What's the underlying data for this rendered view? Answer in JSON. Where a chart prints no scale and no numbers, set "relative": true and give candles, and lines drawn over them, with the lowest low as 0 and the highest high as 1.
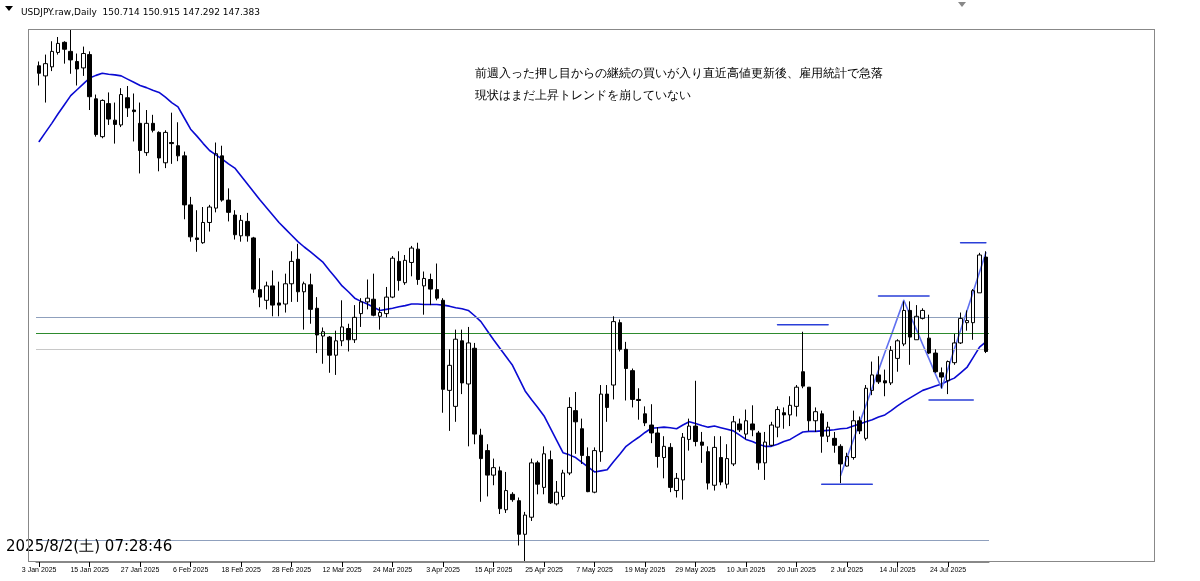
{
  "chart_data": {
    "type": "candlestick",
    "title": "USDJPY.raw,Daily  150.714 150.915 147.292 147.383",
    "relative": true,
    "marker": "none",
    "annotations": [
      "前週入った押し目からの継続の買いが入り直近高値更新後、雇用統計で急落",
      "現状はまだ上昇トレンドを崩していない",
      "2025/8/2(土) 07:28:46"
    ],
    "categories": [
      "3 Jan 2025",
      null,
      null,
      null,
      null,
      null,
      null,
      null,
      "15 Jan 2025",
      null,
      null,
      null,
      null,
      null,
      null,
      null,
      "27 Jan 2025",
      null,
      null,
      null,
      null,
      null,
      null,
      null,
      "6 Feb 2025",
      null,
      null,
      null,
      null,
      null,
      null,
      null,
      "18 Feb 2025",
      null,
      null,
      null,
      null,
      null,
      null,
      null,
      "28 Feb 2025",
      null,
      null,
      null,
      null,
      null,
      null,
      null,
      "12 Mar 2025",
      null,
      null,
      null,
      null,
      null,
      null,
      null,
      "24 Mar 2025",
      null,
      null,
      null,
      null,
      null,
      null,
      null,
      "3 Apr 2025",
      null,
      null,
      null,
      null,
      null,
      null,
      null,
      "15 Apr 2025",
      null,
      null,
      null,
      null,
      null,
      null,
      null,
      "25 Apr 2025",
      null,
      null,
      null,
      null,
      null,
      null,
      null,
      "7 May 2025",
      null,
      null,
      null,
      null,
      null,
      null,
      null,
      "19 May 2025",
      null,
      null,
      null,
      null,
      null,
      null,
      null,
      "29 May 2025",
      null,
      null,
      null,
      null,
      null,
      null,
      null,
      "10 Jun 2025",
      null,
      null,
      null,
      null,
      null,
      null,
      null,
      "20 Jun 2025",
      null,
      null,
      null,
      null,
      null,
      null,
      null,
      "2 Jul 2025",
      null,
      null,
      null,
      null,
      null,
      null,
      null,
      "14 Jul 2025",
      null,
      null,
      null,
      null,
      null,
      null,
      null,
      "24 Jul 2025",
      null,
      null,
      null,
      null,
      null,
      null
    ],
    "ohlc": [
      [
        0.931,
        0.939,
        0.894,
        0.917
      ],
      [
        0.912,
        0.952,
        0.862,
        0.935
      ],
      [
        0.929,
        0.977,
        0.921,
        0.958
      ],
      [
        0.956,
        0.985,
        0.952,
        0.973
      ],
      [
        0.975,
        0.977,
        0.935,
        0.962
      ],
      [
        0.958,
        1,
        0.916,
        0.942
      ],
      [
        0.939,
        0.954,
        0.894,
        0.925
      ],
      [
        0.927,
        0.967,
        0.912,
        0.954
      ],
      [
        0.952,
        0.958,
        0.848,
        0.873
      ],
      [
        0.869,
        0.877,
        0.798,
        0.802
      ],
      [
        0.798,
        0.868,
        0.795,
        0.866
      ],
      [
        0.86,
        0.881,
        0.82,
        0.831
      ],
      [
        0.829,
        0.862,
        0.785,
        0.821
      ],
      [
        0.82,
        0.889,
        0.816,
        0.877
      ],
      [
        0.871,
        0.893,
        0.835,
        0.852
      ],
      [
        0.848,
        0.879,
        0.789,
        0.845
      ],
      [
        0.823,
        0.862,
        0.729,
        0.772
      ],
      [
        0.768,
        0.848,
        0.762,
        0.823
      ],
      [
        0.823,
        0.839,
        0.806,
        0.81
      ],
      [
        0.806,
        0.808,
        0.733,
        0.758
      ],
      [
        0.749,
        0.81,
        0.739,
        0.806
      ],
      [
        0.787,
        0.843,
        0.747,
        0.785
      ],
      [
        0.781,
        0.825,
        0.752,
        0.762
      ],
      [
        0.762,
        0.77,
        0.643,
        0.67
      ],
      [
        0.67,
        0.685,
        0.601,
        0.61
      ],
      [
        0.608,
        0.66,
        0.582,
        0.605
      ],
      [
        0.599,
        0.666,
        0.597,
        0.637
      ],
      [
        0.637,
        0.67,
        0.62,
        0.666
      ],
      [
        0.664,
        0.787,
        0.656,
        0.766
      ],
      [
        0.762,
        0.781,
        0.676,
        0.679
      ],
      [
        0.679,
        0.701,
        0.639,
        0.656
      ],
      [
        0.651,
        0.66,
        0.605,
        0.614
      ],
      [
        0.612,
        0.651,
        0.601,
        0.641
      ],
      [
        0.639,
        0.655,
        0.601,
        0.612
      ],
      [
        0.608,
        0.61,
        0.505,
        0.512
      ],
      [
        0.511,
        0.57,
        0.478,
        0.497
      ],
      [
        0.491,
        0.526,
        0.474,
        0.518
      ],
      [
        0.518,
        0.547,
        0.461,
        0.482
      ],
      [
        0.486,
        0.526,
        0.461,
        0.482
      ],
      [
        0.484,
        0.541,
        0.468,
        0.522
      ],
      [
        0.522,
        0.583,
        0.488,
        0.564
      ],
      [
        0.568,
        0.597,
        0.488,
        0.507
      ],
      [
        0.507,
        0.526,
        0.436,
        0.522
      ],
      [
        0.52,
        0.541,
        0.447,
        0.474
      ],
      [
        0.476,
        0.497,
        0.392,
        0.426
      ],
      [
        0.424,
        0.44,
        0.372,
        0.432
      ],
      [
        0.422,
        0.424,
        0.355,
        0.388
      ],
      [
        0.388,
        0.434,
        0.351,
        0.415
      ],
      [
        0.415,
        0.491,
        0.405,
        0.441
      ],
      [
        0.438,
        0.447,
        0.395,
        0.417
      ],
      [
        0.417,
        0.482,
        0.411,
        0.459
      ],
      [
        0.466,
        0.495,
        0.441,
        0.488
      ],
      [
        0.488,
        0.53,
        0.474,
        0.495
      ],
      [
        0.493,
        0.541,
        0.461,
        0.463
      ],
      [
        0.461,
        0.478,
        0.436,
        0.468
      ],
      [
        0.466,
        0.516,
        0.459,
        0.497
      ],
      [
        0.497,
        0.574,
        0.495,
        0.57
      ],
      [
        0.564,
        0.583,
        0.509,
        0.528
      ],
      [
        0.524,
        0.576,
        0.52,
        0.566
      ],
      [
        0.562,
        0.593,
        0.536,
        0.589
      ],
      [
        0.587,
        0.599,
        0.52,
        0.53
      ],
      [
        0.518,
        0.545,
        0.464,
        0.532
      ],
      [
        0.53,
        0.541,
        0.482,
        0.512
      ],
      [
        0.511,
        0.56,
        0.491,
        0.495
      ],
      [
        0.491,
        0.495,
        0.28,
        0.324
      ],
      [
        0.322,
        0.399,
        0.246,
        0.369
      ],
      [
        0.292,
        0.436,
        0.263,
        0.418
      ],
      [
        0.415,
        0.436,
        0.315,
        0.336
      ],
      [
        0.334,
        0.441,
        0.217,
        0.411
      ],
      [
        0.401,
        0.411,
        0.221,
        0.24
      ],
      [
        0.238,
        0.25,
        0.113,
        0.194
      ],
      [
        0.209,
        0.221,
        0.123,
        0.163
      ],
      [
        0.163,
        0.194,
        0.144,
        0.177
      ],
      [
        0.171,
        0.179,
        0.09,
        0.1
      ],
      [
        0.098,
        0.169,
        0.092,
        0.134
      ],
      [
        0.127,
        0.131,
        0.113,
        0.117
      ],
      [
        0.115,
        0.121,
        0.031,
        0.052
      ],
      [
        0.052,
        0.094,
        0,
        0.088
      ],
      [
        0.084,
        0.194,
        0.077,
        0.186
      ],
      [
        0.186,
        0.19,
        0.127,
        0.146
      ],
      [
        0.14,
        0.217,
        0.127,
        0.203
      ],
      [
        0.192,
        0.209,
        0.109,
        0.111
      ],
      [
        0.109,
        0.152,
        0.106,
        0.131
      ],
      [
        0.123,
        0.173,
        0.117,
        0.167
      ],
      [
        0.167,
        0.309,
        0.163,
        0.29
      ],
      [
        0.284,
        0.319,
        0.203,
        0.263
      ],
      [
        0.25,
        0.269,
        0.184,
        0.2
      ],
      [
        0.198,
        0.215,
        0.131,
        0.132
      ],
      [
        0.131,
        0.215,
        0.129,
        0.209
      ],
      [
        0.207,
        0.332,
        0.188,
        0.315
      ],
      [
        0.315,
        0.332,
        0.263,
        0.29
      ],
      [
        0.332,
        0.461,
        0.305,
        0.451
      ],
      [
        0.449,
        0.455,
        0.395,
        0.399
      ],
      [
        0.399,
        0.413,
        0.303,
        0.363
      ],
      [
        0.359,
        0.363,
        0.29,
        0.305
      ],
      [
        0.305,
        0.326,
        0.267,
        0.303
      ],
      [
        0.278,
        0.292,
        0.255,
        0.261
      ],
      [
        0.257,
        0.296,
        0.223,
        0.242
      ],
      [
        0.242,
        0.253,
        0.177,
        0.198
      ],
      [
        0.196,
        0.236,
        0.157,
        0.217
      ],
      [
        0.215,
        0.223,
        0.131,
        0.14
      ],
      [
        0.134,
        0.167,
        0.121,
        0.157
      ],
      [
        0.154,
        0.242,
        0.117,
        0.234
      ],
      [
        0.23,
        0.269,
        0.209,
        0.255
      ],
      [
        0.255,
        0.34,
        0.217,
        0.226
      ],
      [
        0.225,
        0.244,
        0.186,
        0.219
      ],
      [
        0.207,
        0.217,
        0.136,
        0.148
      ],
      [
        0.144,
        0.236,
        0.134,
        0.215
      ],
      [
        0.196,
        0.236,
        0.144,
        0.15
      ],
      [
        0.146,
        0.221,
        0.138,
        0.194
      ],
      [
        0.184,
        0.274,
        0.18,
        0.263
      ],
      [
        0.259,
        0.269,
        0.244,
        0.248
      ],
      [
        0.24,
        0.286,
        0.23,
        0.265
      ],
      [
        0.259,
        0.294,
        0.236,
        0.248
      ],
      [
        0.242,
        0.246,
        0.173,
        0.186
      ],
      [
        0.186,
        0.244,
        0.154,
        0.225
      ],
      [
        0.219,
        0.263,
        0.217,
        0.257
      ],
      [
        0.253,
        0.292,
        0.234,
        0.286
      ],
      [
        0.28,
        0.29,
        0.25,
        0.276
      ],
      [
        0.276,
        0.311,
        0.255,
        0.294
      ],
      [
        0.292,
        0.332,
        0.273,
        0.328
      ],
      [
        0.357,
        0.432,
        0.326,
        0.33
      ],
      [
        0.328,
        0.328,
        0.246,
        0.265
      ],
      [
        0.265,
        0.29,
        0.244,
        0.282
      ],
      [
        0.278,
        0.284,
        0.205,
        0.236
      ],
      [
        0.236,
        0.263,
        0.225,
        0.253
      ],
      [
        0.232,
        0.244,
        0.205,
        0.219
      ],
      [
        0.217,
        0.221,
        0.148,
        0.184
      ],
      [
        0.18,
        0.205,
        0.179,
        0.198
      ],
      [
        0.196,
        0.284,
        0.192,
        0.265
      ],
      [
        0.265,
        0.273,
        0.24,
        0.246
      ],
      [
        0.232,
        0.332,
        0.228,
        0.326
      ],
      [
        0.322,
        0.376,
        0.313,
        0.351
      ],
      [
        0.351,
        0.386,
        0.334,
        0.338
      ],
      [
        0.34,
        0.361,
        0.311,
        0.336
      ],
      [
        0.336,
        0.405,
        0.332,
        0.397
      ],
      [
        0.382,
        0.418,
        0.357,
        0.415
      ],
      [
        0.409,
        0.489,
        0.405,
        0.472
      ],
      [
        0.472,
        0.489,
        0.37,
        0.422
      ],
      [
        0.417,
        0.482,
        0.417,
        0.461
      ],
      [
        0.457,
        0.476,
        0.455,
        0.472
      ],
      [
        0.42,
        0.464,
        0.39,
        0.392
      ],
      [
        0.392,
        0.399,
        0.355,
        0.357
      ],
      [
        0.355,
        0.365,
        0.326,
        0.347
      ],
      [
        0.34,
        0.378,
        0.315,
        0.376
      ],
      [
        0.374,
        0.428,
        0.37,
        0.411
      ],
      [
        0.411,
        0.468,
        0.409,
        0.457
      ],
      [
        0.449,
        0.472,
        0.434,
        0.453
      ],
      [
        0.449,
        0.512,
        0.417,
        0.509
      ],
      [
        0.505,
        0.58,
        0.505,
        0.576
      ],
      [
        0.572,
        0.583,
        0.392,
        0.395
      ]
    ],
    "series": [
      {
        "type": "line",
        "color": "#0a0ad2",
        "values": [
          0.789,
          0.806,
          0.823,
          0.841,
          0.858,
          0.875,
          0.886,
          0.897,
          0.908,
          0.913,
          0.917,
          0.915,
          0.914,
          0.912,
          0.906,
          0.9,
          0.894,
          0.89,
          0.885,
          0.881,
          0.872,
          0.862,
          0.854,
          0.833,
          0.812,
          0.799,
          0.785,
          0.772,
          0.764,
          0.756,
          0.747,
          0.739,
          0.724,
          0.709,
          0.694,
          0.679,
          0.665,
          0.651,
          0.637,
          0.625,
          0.613,
          0.601,
          0.591,
          0.582,
          0.572,
          0.562,
          0.547,
          0.533,
          0.518,
          0.507,
          0.495,
          0.489,
          0.484,
          0.478,
          0.472,
          0.474,
          0.476,
          0.479,
          0.481,
          0.484,
          0.484,
          0.483,
          0.483,
          0.483,
          0.482,
          0.48,
          0.477,
          0.475,
          0.472,
          0.462,
          0.451,
          0.434,
          0.417,
          0.401,
          0.385,
          0.369,
          0.345,
          0.321,
          0.305,
          0.29,
          0.274,
          0.251,
          0.228,
          0.205,
          0.201,
          0.196,
          0.187,
          0.178,
          0.169,
          0.171,
          0.173,
          0.188,
          0.202,
          0.217,
          0.226,
          0.234,
          0.243,
          0.251,
          0.252,
          0.253,
          0.252,
          0.25,
          0.257,
          0.263,
          0.26,
          0.256,
          0.253,
          0.255,
          0.252,
          0.249,
          0.246,
          0.238,
          0.23,
          0.226,
          0.221,
          0.217,
          0.217,
          0.221,
          0.226,
          0.23,
          0.237,
          0.244,
          0.245,
          0.245,
          0.246,
          0.247,
          0.248,
          0.25,
          0.251,
          0.255,
          0.259,
          0.263,
          0.267,
          0.272,
          0.276,
          0.284,
          0.293,
          0.301,
          0.308,
          0.315,
          0.322,
          0.326,
          0.33,
          0.334,
          0.34,
          0.345,
          0.355,
          0.365,
          0.384,
          0.403,
          0.413
        ]
      },
      {
        "type": "line",
        "color": "#2a3fd8",
        "values": [
          null,
          null,
          null,
          null,
          null,
          null,
          null,
          null,
          null,
          null,
          null,
          null,
          null,
          null,
          null,
          null,
          null,
          null,
          null,
          null,
          null,
          null,
          null,
          null,
          null,
          null,
          null,
          null,
          null,
          null,
          null,
          null,
          null,
          null,
          null,
          null,
          null,
          null,
          null,
          null,
          null,
          null,
          null,
          null,
          null,
          null,
          null,
          null,
          null,
          null,
          null,
          null,
          null,
          null,
          null,
          null,
          null,
          null,
          null,
          null,
          null,
          null,
          null,
          null,
          null,
          null,
          null,
          null,
          null,
          null,
          null,
          null,
          null,
          null,
          null,
          null,
          null,
          null,
          null,
          null,
          null,
          null,
          null,
          null,
          null,
          null,
          null,
          null,
          null,
          null,
          null,
          null,
          null,
          null,
          null,
          null,
          null,
          null,
          null,
          null,
          null,
          null,
          null,
          null,
          null,
          null,
          null,
          null,
          null,
          null,
          null,
          null,
          null,
          null,
          null,
          null,
          null,
          0.445,
          0.445,
          0.445,
          0.445,
          0.445,
          0.445,
          0.445,
          0.445,
          0.445,
          null,
          null,
          null,
          null,
          null,
          null,
          null,
          null,
          null,
          null,
          null,
          null,
          null,
          null,
          null,
          null,
          null,
          null,
          null,
          null,
          null,
          null,
          null,
          null,
          null
        ]
      },
      {
        "type": "line",
        "color": "#2a3fd8",
        "values": [
          null,
          null,
          null,
          null,
          null,
          null,
          null,
          null,
          null,
          null,
          null,
          null,
          null,
          null,
          null,
          null,
          null,
          null,
          null,
          null,
          null,
          null,
          null,
          null,
          null,
          null,
          null,
          null,
          null,
          null,
          null,
          null,
          null,
          null,
          null,
          null,
          null,
          null,
          null,
          null,
          null,
          null,
          null,
          null,
          null,
          null,
          null,
          null,
          null,
          null,
          null,
          null,
          null,
          null,
          null,
          null,
          null,
          null,
          null,
          null,
          null,
          null,
          null,
          null,
          null,
          null,
          null,
          null,
          null,
          null,
          null,
          null,
          null,
          null,
          null,
          null,
          null,
          null,
          null,
          null,
          null,
          null,
          null,
          null,
          null,
          null,
          null,
          null,
          null,
          null,
          null,
          null,
          null,
          null,
          null,
          null,
          null,
          null,
          null,
          null,
          null,
          null,
          null,
          null,
          null,
          null,
          null,
          null,
          null,
          null,
          null,
          null,
          null,
          null,
          null,
          null,
          null,
          null,
          null,
          null,
          null,
          null,
          null,
          null,
          null,
          null,
          null,
          null,
          null,
          null,
          null,
          null,
          null,
          0.499,
          0.499,
          0.499,
          0.499,
          0.499,
          0.499,
          0.499,
          0.499,
          0.499,
          null,
          null,
          null,
          null,
          null,
          null,
          null,
          null,
          null
        ]
      },
      {
        "type": "line",
        "color": "#2a3fd8",
        "values": [
          null,
          null,
          null,
          null,
          null,
          null,
          null,
          null,
          null,
          null,
          null,
          null,
          null,
          null,
          null,
          null,
          null,
          null,
          null,
          null,
          null,
          null,
          null,
          null,
          null,
          null,
          null,
          null,
          null,
          null,
          null,
          null,
          null,
          null,
          null,
          null,
          null,
          null,
          null,
          null,
          null,
          null,
          null,
          null,
          null,
          null,
          null,
          null,
          null,
          null,
          null,
          null,
          null,
          null,
          null,
          null,
          null,
          null,
          null,
          null,
          null,
          null,
          null,
          null,
          null,
          null,
          null,
          null,
          null,
          null,
          null,
          null,
          null,
          null,
          null,
          null,
          null,
          null,
          null,
          null,
          null,
          null,
          null,
          null,
          null,
          null,
          null,
          null,
          null,
          null,
          null,
          null,
          null,
          null,
          null,
          null,
          null,
          null,
          null,
          null,
          null,
          null,
          null,
          null,
          null,
          null,
          null,
          null,
          null,
          null,
          null,
          null,
          null,
          null,
          null,
          null,
          null,
          null,
          null,
          null,
          null,
          null,
          null,
          null,
          null,
          null,
          null,
          null,
          null,
          null,
          null,
          null,
          null,
          null,
          null,
          null,
          null,
          null,
          null,
          null,
          null,
          null,
          null,
          null,
          null,
          null,
          0.599,
          0.599,
          0.599,
          0.599,
          0.599
        ]
      },
      {
        "type": "line",
        "color": "#2a3fd8",
        "values": [
          null,
          null,
          null,
          null,
          null,
          null,
          null,
          null,
          null,
          null,
          null,
          null,
          null,
          null,
          null,
          null,
          null,
          null,
          null,
          null,
          null,
          null,
          null,
          null,
          null,
          null,
          null,
          null,
          null,
          null,
          null,
          null,
          null,
          null,
          null,
          null,
          null,
          null,
          null,
          null,
          null,
          null,
          null,
          null,
          null,
          null,
          null,
          null,
          null,
          null,
          null,
          null,
          null,
          null,
          null,
          null,
          null,
          null,
          null,
          null,
          null,
          null,
          null,
          null,
          null,
          null,
          null,
          null,
          null,
          null,
          null,
          null,
          null,
          null,
          null,
          null,
          null,
          null,
          null,
          null,
          null,
          null,
          null,
          null,
          null,
          null,
          null,
          null,
          null,
          null,
          null,
          null,
          null,
          null,
          null,
          null,
          null,
          null,
          null,
          null,
          null,
          null,
          null,
          null,
          null,
          null,
          null,
          null,
          null,
          null,
          null,
          null,
          null,
          null,
          null,
          null,
          null,
          null,
          null,
          null,
          null,
          null,
          null,
          null,
          null,
          null,
          null,
          null,
          null,
          null,
          null,
          null,
          null,
          null,
          null,
          null,
          null,
          null,
          null,
          null,
          null,
          0.304,
          0.304,
          0.304,
          0.304,
          0.304,
          0.304,
          0.304,
          0.304,
          null,
          null
        ]
      },
      {
        "type": "line",
        "color": "#2a3fd8",
        "values": [
          null,
          null,
          null,
          null,
          null,
          null,
          null,
          null,
          null,
          null,
          null,
          null,
          null,
          null,
          null,
          null,
          null,
          null,
          null,
          null,
          null,
          null,
          null,
          null,
          null,
          null,
          null,
          null,
          null,
          null,
          null,
          null,
          null,
          null,
          null,
          null,
          null,
          null,
          null,
          null,
          null,
          null,
          null,
          null,
          null,
          null,
          null,
          null,
          null,
          null,
          null,
          null,
          null,
          null,
          null,
          null,
          null,
          null,
          null,
          null,
          null,
          null,
          null,
          null,
          null,
          null,
          null,
          null,
          null,
          null,
          null,
          null,
          null,
          null,
          null,
          null,
          null,
          null,
          null,
          null,
          null,
          null,
          null,
          null,
          null,
          null,
          null,
          null,
          null,
          null,
          null,
          null,
          null,
          null,
          null,
          null,
          null,
          null,
          null,
          null,
          null,
          null,
          null,
          null,
          null,
          null,
          null,
          null,
          null,
          null,
          null,
          null,
          null,
          null,
          null,
          null,
          null,
          null,
          null,
          null,
          null,
          null,
          null,
          null,
          0.146,
          0.146,
          0.146,
          0.146,
          0.146,
          0.146,
          0.146,
          0.146,
          0.146,
          null,
          null,
          null,
          null,
          null,
          null,
          null,
          null,
          null,
          null,
          null,
          null,
          null,
          null,
          null,
          null,
          null,
          null
        ]
      },
      {
        "type": "line",
        "color": "#6070f0",
        "values": [
          null,
          null,
          null,
          null,
          null,
          null,
          null,
          null,
          null,
          null,
          null,
          null,
          null,
          null,
          null,
          null,
          null,
          null,
          null,
          null,
          null,
          null,
          null,
          null,
          null,
          null,
          null,
          null,
          null,
          null,
          null,
          null,
          null,
          null,
          null,
          null,
          null,
          null,
          null,
          null,
          null,
          null,
          null,
          null,
          null,
          null,
          null,
          null,
          null,
          null,
          null,
          null,
          null,
          null,
          null,
          null,
          null,
          null,
          null,
          null,
          null,
          null,
          null,
          null,
          null,
          null,
          null,
          null,
          null,
          null,
          null,
          null,
          null,
          null,
          null,
          null,
          null,
          null,
          null,
          null,
          null,
          null,
          null,
          null,
          null,
          null,
          null,
          null,
          null,
          null,
          null,
          null,
          null,
          null,
          null,
          null,
          null,
          null,
          null,
          null,
          null,
          null,
          null,
          null,
          null,
          null,
          null,
          null,
          null,
          null,
          null,
          null,
          null,
          null,
          null,
          null,
          null,
          null,
          null,
          null,
          null,
          null,
          null,
          null,
          null,
          null,
          null,
          0.163,
          0.196,
          0.229,
          0.261,
          0.294,
          0.327,
          0.36,
          0.393,
          0.425,
          0.458,
          0.491,
          0.463,
          0.436,
          0.408,
          0.381,
          0.353,
          0.326,
          0.362,
          0.399,
          0.435,
          0.471,
          0.507,
          0.544,
          0.58
        ]
      }
    ],
    "ref_lines": [
      {
        "axis": "y",
        "value": 0.459,
        "color": "#8fa0bd"
      },
      {
        "axis": "y",
        "value": 0.43,
        "color": "#2e8b2e"
      },
      {
        "axis": "y",
        "value": 0.397,
        "color": "#c8c8c8"
      },
      {
        "axis": "y",
        "value": 0.04,
        "color": "#8fa0bd"
      }
    ]
  }
}
